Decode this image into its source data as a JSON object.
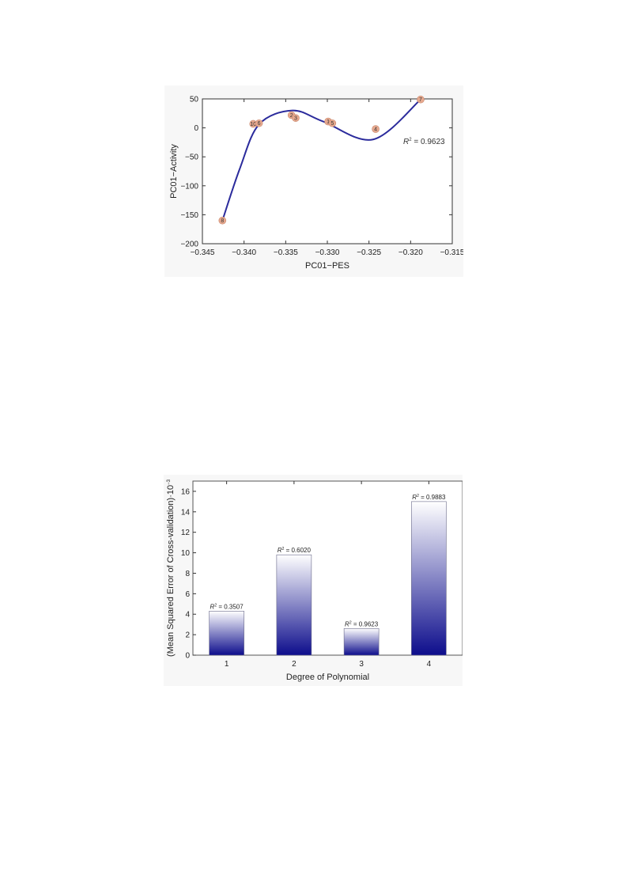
{
  "chart_data": [
    {
      "type": "scatter",
      "xlabel": "PC01−PES",
      "ylabel": "PC01−Activity",
      "xlim": [
        -0.345,
        -0.315
      ],
      "ylim": [
        -200,
        50
      ],
      "x_ticks": [
        "−0.345",
        "−0.340",
        "−0.335",
        "−0.330",
        "−0.325",
        "−0.320",
        "−0.315"
      ],
      "y_ticks": [
        "50",
        "0",
        "−50",
        "−100",
        "−150",
        "−200"
      ],
      "annotation": {
        "r2_prefix": "R",
        "r2_sup": "2",
        "r2_value": " = 0.9623"
      },
      "points": [
        {
          "label": "8",
          "x": -0.3426,
          "y": -160
        },
        {
          "label": "10",
          "x": -0.3389,
          "y": 7
        },
        {
          "label": "6",
          "x": -0.3382,
          "y": 8
        },
        {
          "label": "2",
          "x": -0.3343,
          "y": 22
        },
        {
          "label": "3",
          "x": -0.3338,
          "y": 17
        },
        {
          "label": "1",
          "x": -0.3299,
          "y": 11
        },
        {
          "label": "5",
          "x": -0.3294,
          "y": 8
        },
        {
          "label": "4",
          "x": -0.3242,
          "y": -2
        },
        {
          "label": "7",
          "x": -0.3188,
          "y": 49
        }
      ],
      "fit": {
        "degree": 3,
        "curve": [
          {
            "x": -0.3426,
            "y": -160
          },
          {
            "x": -0.3405,
            "y": -70
          },
          {
            "x": -0.3382,
            "y": 6
          },
          {
            "x": -0.3342,
            "y": 30
          },
          {
            "x": -0.3305,
            "y": 11
          },
          {
            "x": -0.3245,
            "y": -20
          },
          {
            "x": -0.3188,
            "y": 49
          }
        ],
        "color": "#2b2b9c"
      },
      "point_color": "#e7a98f"
    },
    {
      "type": "bar",
      "xlabel": "Degree of Polynomial",
      "ylabel": "(Mean Squared Error of Cross-validation)·10",
      "ylabel_sup": "−3",
      "categories": [
        "1",
        "2",
        "3",
        "4"
      ],
      "values": [
        4.3,
        9.8,
        2.6,
        15.0
      ],
      "ylim": [
        0,
        17
      ],
      "y_ticks": [
        "0",
        "2",
        "4",
        "6",
        "8",
        "10",
        "12",
        "14",
        "16"
      ],
      "labels": [
        {
          "prefix": "R",
          "sup": "2",
          "value": " = 0.3507"
        },
        {
          "prefix": "R",
          "sup": "2",
          "value": " = 0.6020"
        },
        {
          "prefix": "R",
          "sup": "2",
          "value": " = 0.9623"
        },
        {
          "prefix": "R",
          "sup": "2",
          "value": " = 0.9883"
        }
      ],
      "bar_color_top": "#ffffff",
      "bar_color_bottom": "#0d0d8c"
    }
  ]
}
